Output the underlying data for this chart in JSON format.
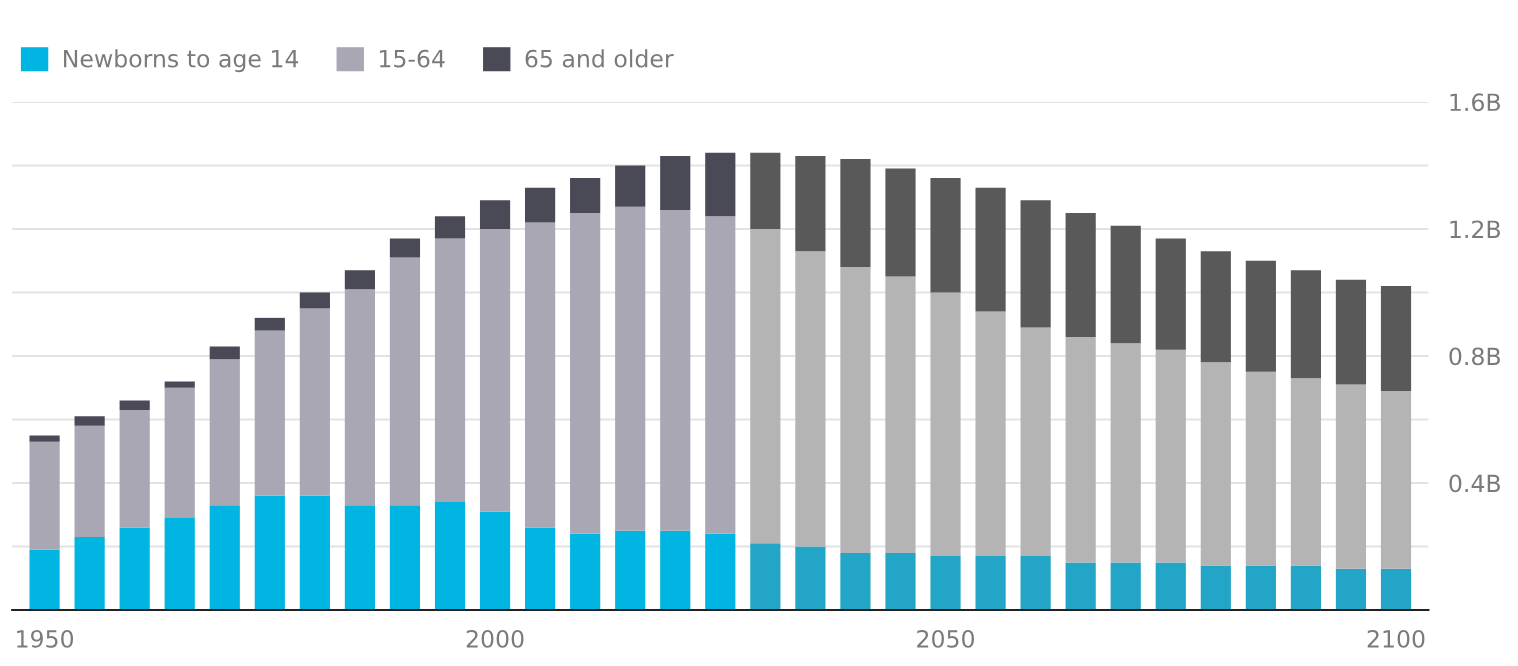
{
  "chart_data": {
    "type": "bar",
    "stacked": true,
    "x": [
      1950,
      1955,
      1960,
      1965,
      1970,
      1975,
      1980,
      1985,
      1990,
      1995,
      2000,
      2005,
      2010,
      2015,
      2020,
      2025,
      2030,
      2035,
      2040,
      2045,
      2050,
      2055,
      2060,
      2065,
      2070,
      2075,
      2080,
      2085,
      2090,
      2095,
      2100
    ],
    "series": [
      {
        "name": "Newborns to age 14",
        "colors": [
          "#00b5e2",
          "#00b5e2",
          "#00b5e2",
          "#00b5e2",
          "#00b5e2",
          "#00b5e2",
          "#00b5e2",
          "#00b5e2",
          "#00b5e2",
          "#00b5e2",
          "#00b5e2",
          "#00b5e2",
          "#00b5e2",
          "#00b5e2",
          "#00b5e2",
          "#00b5e2",
          "#22a5c6",
          "#22a5c6",
          "#22a5c6",
          "#22a5c6",
          "#22a5c6",
          "#22a5c6",
          "#22a5c6",
          "#22a5c6",
          "#22a5c6",
          "#22a5c6",
          "#22a5c6",
          "#22a5c6",
          "#22a5c6",
          "#22a5c6",
          "#22a5c6"
        ],
        "values": [
          0.19,
          0.23,
          0.26,
          0.29,
          0.33,
          0.36,
          0.36,
          0.33,
          0.33,
          0.34,
          0.31,
          0.26,
          0.24,
          0.25,
          0.25,
          0.24,
          0.21,
          0.2,
          0.18,
          0.18,
          0.17,
          0.17,
          0.17,
          0.15,
          0.15,
          0.15,
          0.14,
          0.14,
          0.14,
          0.13,
          0.13
        ]
      },
      {
        "name": "15-64",
        "colors": [
          "#a8a7b3",
          "#a8a7b3",
          "#a8a7b3",
          "#a8a7b3",
          "#a8a7b3",
          "#a8a7b3",
          "#a8a7b3",
          "#a8a7b3",
          "#a8a7b3",
          "#a8a7b3",
          "#a8a7b3",
          "#a8a7b3",
          "#a8a7b3",
          "#a8a7b3",
          "#a8a7b3",
          "#a8a7b3",
          "#b4b4b4",
          "#b4b4b4",
          "#b4b4b4",
          "#b4b4b4",
          "#b4b4b4",
          "#b4b4b4",
          "#b4b4b4",
          "#b4b4b4",
          "#b4b4b4",
          "#b4b4b4",
          "#b4b4b4",
          "#b4b4b4",
          "#b4b4b4",
          "#b4b4b4",
          "#b4b4b4"
        ],
        "values": [
          0.34,
          0.35,
          0.37,
          0.41,
          0.46,
          0.52,
          0.59,
          0.68,
          0.78,
          0.83,
          0.89,
          0.96,
          1.01,
          1.02,
          1.01,
          1.0,
          0.99,
          0.93,
          0.9,
          0.87,
          0.83,
          0.77,
          0.72,
          0.71,
          0.69,
          0.67,
          0.64,
          0.61,
          0.59,
          0.58,
          0.56
        ]
      },
      {
        "name": "65 and older",
        "colors": [
          "#4a4a57",
          "#4a4a57",
          "#4a4a57",
          "#4a4a57",
          "#4a4a57",
          "#4a4a57",
          "#4a4a57",
          "#4a4a57",
          "#4a4a57",
          "#4a4a57",
          "#4a4a57",
          "#4a4a57",
          "#4a4a57",
          "#4a4a57",
          "#4a4a57",
          "#4a4a57",
          "#595959",
          "#595959",
          "#595959",
          "#595959",
          "#595959",
          "#595959",
          "#595959",
          "#595959",
          "#595959",
          "#595959",
          "#595959",
          "#595959",
          "#595959",
          "#595959",
          "#595959"
        ],
        "values": [
          0.02,
          0.03,
          0.03,
          0.02,
          0.04,
          0.04,
          0.05,
          0.06,
          0.06,
          0.07,
          0.09,
          0.11,
          0.11,
          0.13,
          0.17,
          0.2,
          0.24,
          0.3,
          0.34,
          0.34,
          0.36,
          0.39,
          0.4,
          0.39,
          0.37,
          0.35,
          0.35,
          0.35,
          0.34,
          0.33,
          0.33
        ]
      }
    ],
    "xlim": [
      1946.4,
      2103.6
    ],
    "xticks": [
      1950,
      2000,
      2050,
      2100
    ],
    "ylim": [
      0,
      1.6
    ],
    "yticks": [
      {
        "value": 0.2,
        "label": null
      },
      {
        "value": 0.4,
        "label": "0.4B"
      },
      {
        "value": 0.6,
        "label": null
      },
      {
        "value": 0.8,
        "label": "0.8B"
      },
      {
        "value": 1.0,
        "label": null
      },
      {
        "value": 1.2,
        "label": "1.2B"
      },
      {
        "value": 1.4,
        "label": null
      },
      {
        "value": 1.6,
        "label": "1.6B"
      }
    ],
    "grid": "y",
    "legend": "top left"
  }
}
